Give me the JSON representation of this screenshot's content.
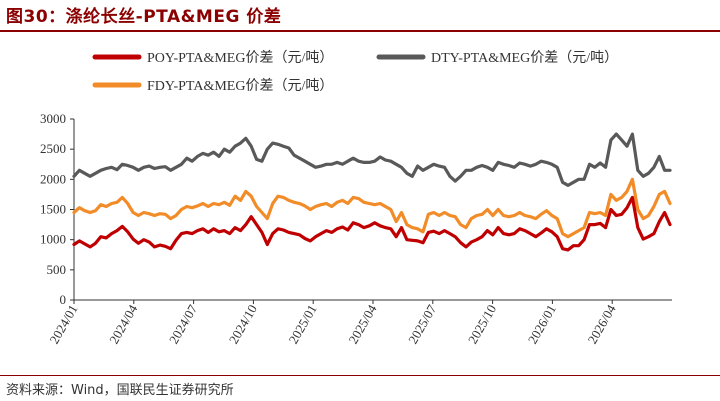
{
  "header": {
    "title": "图30：涤纶长丝-PTA&MEG 价差"
  },
  "footer": {
    "source": "资料来源：Wind，国联民生证券研究所"
  },
  "chart_data": {
    "type": "line",
    "title": "",
    "xlabel": "",
    "ylabel": "",
    "ylim": [
      0,
      3000
    ],
    "yticks": [
      0,
      500,
      1000,
      1500,
      2000,
      2500,
      3000
    ],
    "xlim": [
      "2024-01",
      "2026-07"
    ],
    "xticks": [
      "2024/01",
      "2024/04",
      "2024/07",
      "2024/10",
      "2025/01",
      "2025/04",
      "2025/07",
      "2025/10",
      "2026/01",
      "2026/04"
    ],
    "grid": false,
    "legend_position": "top",
    "x_frequency": "weekly",
    "series": [
      {
        "name": "POY-PTA&MEG价差（元/吨）",
        "color": "#c00000",
        "values": [
          920,
          980,
          930,
          880,
          940,
          1050,
          1030,
          1100,
          1150,
          1220,
          1130,
          1010,
          940,
          1000,
          960,
          880,
          910,
          890,
          850,
          990,
          1100,
          1120,
          1100,
          1150,
          1180,
          1120,
          1180,
          1130,
          1150,
          1100,
          1200,
          1150,
          1250,
          1380,
          1250,
          1120,
          920,
          1100,
          1180,
          1160,
          1120,
          1100,
          1080,
          1020,
          980,
          1050,
          1100,
          1150,
          1120,
          1180,
          1210,
          1160,
          1280,
          1250,
          1200,
          1230,
          1280,
          1230,
          1200,
          1180,
          1050,
          1200,
          1000,
          990,
          980,
          950,
          1120,
          1140,
          1100,
          1150,
          1100,
          1050,
          950,
          880,
          960,
          1000,
          1050,
          1150,
          1080,
          1200,
          1100,
          1080,
          1100,
          1180,
          1150,
          1100,
          1050,
          1110,
          1180,
          1130,
          1050,
          850,
          830,
          900,
          900,
          1000,
          1250,
          1250,
          1270,
          1200,
          1500,
          1400,
          1420,
          1530,
          1700,
          1200,
          1010,
          1050,
          1100,
          1300,
          1450,
          1250
        ]
      },
      {
        "name": "DTY-PTA&MEG价差（元/吨）",
        "color": "#595959",
        "values": [
          2050,
          2150,
          2100,
          2050,
          2100,
          2150,
          2180,
          2200,
          2160,
          2250,
          2230,
          2200,
          2150,
          2200,
          2220,
          2180,
          2200,
          2210,
          2150,
          2200,
          2250,
          2350,
          2300,
          2380,
          2430,
          2400,
          2450,
          2380,
          2500,
          2450,
          2550,
          2600,
          2680,
          2550,
          2330,
          2300,
          2500,
          2600,
          2580,
          2550,
          2520,
          2400,
          2350,
          2300,
          2250,
          2200,
          2220,
          2250,
          2250,
          2280,
          2250,
          2300,
          2350,
          2300,
          2280,
          2280,
          2300,
          2370,
          2320,
          2300,
          2250,
          2200,
          2100,
          2050,
          2220,
          2150,
          2200,
          2250,
          2220,
          2200,
          2050,
          1970,
          2050,
          2150,
          2150,
          2200,
          2230,
          2200,
          2150,
          2280,
          2250,
          2230,
          2200,
          2270,
          2250,
          2220,
          2250,
          2300,
          2280,
          2250,
          2200,
          1950,
          1900,
          1950,
          2000,
          2000,
          2250,
          2200,
          2270,
          2200,
          2650,
          2750,
          2650,
          2550,
          2750,
          2150,
          2050,
          2100,
          2200,
          2380,
          2150,
          2150
        ]
      },
      {
        "name": "FDY-PTA&MEG价差（元/吨）",
        "color": "#f28c28",
        "values": [
          1450,
          1530,
          1480,
          1450,
          1480,
          1580,
          1550,
          1600,
          1620,
          1700,
          1600,
          1450,
          1400,
          1450,
          1430,
          1400,
          1430,
          1420,
          1350,
          1400,
          1500,
          1550,
          1530,
          1560,
          1600,
          1550,
          1600,
          1580,
          1620,
          1570,
          1720,
          1650,
          1800,
          1720,
          1550,
          1450,
          1350,
          1600,
          1720,
          1700,
          1650,
          1620,
          1600,
          1560,
          1500,
          1550,
          1580,
          1600,
          1550,
          1620,
          1650,
          1600,
          1700,
          1680,
          1620,
          1600,
          1580,
          1600,
          1550,
          1500,
          1300,
          1450,
          1250,
          1200,
          1180,
          1130,
          1420,
          1450,
          1400,
          1450,
          1400,
          1380,
          1250,
          1200,
          1350,
          1400,
          1420,
          1500,
          1400,
          1500,
          1400,
          1380,
          1400,
          1450,
          1400,
          1380,
          1350,
          1420,
          1480,
          1400,
          1350,
          1100,
          1050,
          1100,
          1150,
          1200,
          1450,
          1430,
          1450,
          1400,
          1750,
          1650,
          1700,
          1800,
          2000,
          1500,
          1350,
          1400,
          1550,
          1750,
          1800,
          1600
        ]
      }
    ]
  }
}
